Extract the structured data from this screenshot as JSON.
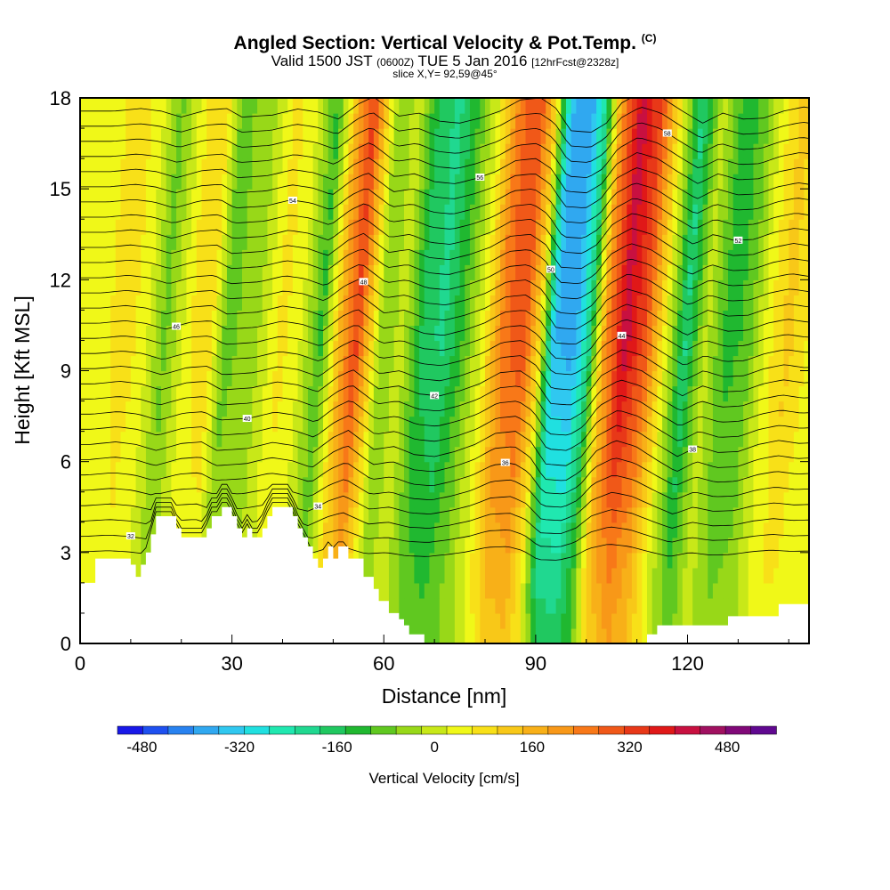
{
  "chart_data": {
    "type": "heatmap",
    "title": "Angled Section: Vertical Velocity & Pot.Temp.",
    "title_unit": "(C)",
    "subtitle_valid": "Valid 1500 JST",
    "subtitle_utc": "(0600Z)",
    "subtitle_date": "TUE 5 Jan 2016",
    "subtitle_fcst": "[12hrFcst@2328z]",
    "slice_label": "slice X,Y= 92,59@45°",
    "xlabel": "Distance [nm]",
    "ylabel": "Height [Kft MSL]",
    "xlim": [
      0,
      144
    ],
    "ylim": [
      0,
      18
    ],
    "xticks": [
      "0",
      "30",
      "60",
      "90",
      "120"
    ],
    "yticks": [
      "0",
      "3",
      "6",
      "9",
      "12",
      "15",
      "18"
    ],
    "colorbar": {
      "label": "Vertical Velocity [cm/s]",
      "ticks": [
        "-480",
        "-320",
        "-160",
        "0",
        "160",
        "320",
        "480"
      ],
      "range": [
        -520,
        560
      ],
      "colors": [
        "#1818e8",
        "#1e50f0",
        "#2882f0",
        "#30a8f0",
        "#30c8f0",
        "#20e0e0",
        "#20e8b0",
        "#20d890",
        "#20c860",
        "#20b830",
        "#60c820",
        "#98d818",
        "#c8e818",
        "#f0f818",
        "#f8e018",
        "#f8c818",
        "#f8b018",
        "#f89818",
        "#f87818",
        "#f05818",
        "#e83818",
        "#e01818",
        "#c81040",
        "#a01060",
        "#800878",
        "#600890"
      ]
    },
    "velocity_profile": {
      "x": [
        0,
        5,
        9,
        13,
        18,
        22,
        25,
        31,
        36,
        40,
        44,
        48,
        51,
        56,
        60,
        64,
        68,
        72,
        76,
        80,
        84,
        87,
        90,
        94,
        97,
        100,
        104,
        108,
        112,
        116,
        120,
        124,
        128,
        132,
        136,
        140,
        144
      ],
      "w": [
        40,
        90,
        40,
        -80,
        60,
        90,
        -80,
        -40,
        80,
        20,
        -120,
        180,
        320,
        -60,
        0,
        -160,
        -200,
        -100,
        40,
        260,
        300,
        100,
        -350,
        -380,
        -200,
        200,
        420,
        300,
        40,
        -200,
        0,
        -120,
        -100,
        40,
        120,
        60,
        80
      ]
    },
    "terrain": {
      "x": [
        0,
        3,
        3,
        10,
        10,
        11,
        11,
        12,
        12,
        13,
        13,
        14,
        14,
        15,
        15,
        19,
        19,
        20,
        20,
        25,
        25,
        26,
        26,
        28,
        28,
        30,
        30,
        31,
        31,
        32,
        32,
        33,
        33,
        34,
        34,
        36,
        36,
        37,
        37,
        38,
        38,
        42,
        42,
        43,
        43,
        44,
        44,
        45,
        45,
        46,
        46,
        47,
        47,
        48,
        48,
        49,
        49,
        50,
        50,
        51,
        51,
        53,
        53,
        56,
        56,
        58,
        58,
        59,
        59,
        61,
        61,
        63,
        63,
        64,
        64,
        65,
        65,
        68,
        68,
        112,
        112,
        114,
        114,
        128,
        128,
        138,
        138,
        144
      ],
      "y": [
        2,
        2,
        2.8,
        2.8,
        2.6,
        2.6,
        2.2,
        2.2,
        2.6,
        2.6,
        3,
        3,
        3.6,
        3.6,
        4.2,
        4.2,
        3.8,
        3.8,
        3.5,
        3.5,
        3.8,
        3.8,
        4.2,
        4.2,
        4.5,
        4.5,
        4.2,
        4.2,
        3.8,
        3.8,
        3.5,
        3.5,
        3.8,
        3.8,
        3.5,
        3.5,
        3.8,
        3.8,
        4.2,
        4.2,
        4.5,
        4.5,
        4.2,
        4.2,
        3.8,
        3.8,
        3.5,
        3.5,
        3.2,
        3.2,
        2.8,
        2.8,
        2.5,
        2.5,
        2.8,
        2.8,
        3.2,
        3.2,
        2.8,
        2.8,
        3.2,
        3.2,
        2.8,
        2.8,
        2.2,
        2.2,
        1.8,
        1.8,
        1.4,
        1.4,
        1.0,
        1.0,
        0.8,
        0.8,
        0.6,
        0.6,
        0.3,
        0.3,
        0,
        0,
        0.3,
        0.3,
        0.6,
        0.6,
        0.9,
        0.9,
        1.3,
        1.3
      ]
    },
    "isentropes": {
      "count": 30,
      "base_height": 3.0,
      "spacing": 0.5,
      "amplitude": 0.5,
      "labels": [
        "32",
        "34",
        "36",
        "38",
        "40",
        "42",
        "44",
        "46",
        "48",
        "50",
        "52",
        "54",
        "56",
        "58"
      ]
    }
  }
}
